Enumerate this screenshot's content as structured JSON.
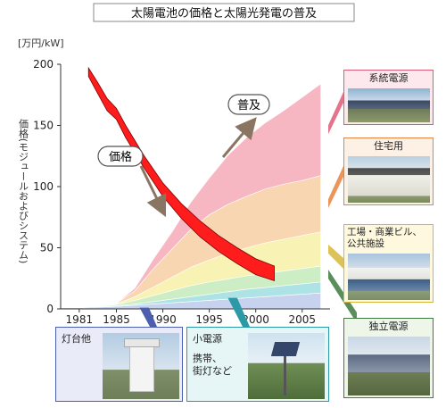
{
  "chart_data": {
    "type": "area",
    "title": "太陽電池の価格と太陽光発電の普及",
    "ylabel": "価格(モジュールおよびシステム)",
    "yunit": "[万円/kW]",
    "ylim": [
      0,
      200
    ],
    "yticks": [
      "0",
      "50",
      "100",
      "150",
      "200"
    ],
    "xticks": [
      "1981",
      "1985",
      "1990",
      "1995",
      "2000",
      "2005"
    ],
    "x": [
      1979,
      1981,
      1983,
      1985,
      1987,
      1989,
      1991,
      1993,
      1995,
      1997,
      1999,
      2001,
      2003,
      2005,
      2007
    ],
    "series": [
      {
        "name": "灯台他",
        "color": "#c7d3ee",
        "values": [
          1,
          1,
          1.5,
          2,
          3,
          4,
          5,
          6,
          7,
          8,
          9,
          10,
          11,
          12,
          13
        ]
      },
      {
        "name": "小電源",
        "color": "#aee3e6",
        "values": [
          0,
          0,
          0.2,
          0.5,
          1,
          2,
          3,
          4,
          5,
          6,
          7,
          7.5,
          8,
          8.5,
          9
        ]
      },
      {
        "name": "独立電源",
        "color": "#cdeec5",
        "values": [
          0,
          0,
          0.3,
          1,
          3,
          5,
          7,
          9,
          10,
          10.5,
          11,
          11.5,
          12,
          12.5,
          13
        ]
      },
      {
        "name": "工場・商業ビル、公共施設",
        "color": "#f8f2b4",
        "values": [
          0,
          0,
          0,
          0.5,
          3,
          7,
          11,
          15,
          18,
          21,
          23,
          25,
          26,
          27,
          28
        ]
      },
      {
        "name": "住宅用",
        "color": "#f9d6b2",
        "values": [
          0,
          0,
          0,
          0.5,
          5,
          15,
          23,
          31,
          37,
          40,
          42,
          44,
          45,
          45,
          46
        ]
      },
      {
        "name": "系統電源",
        "color": "#f6b6c2",
        "values": [
          0,
          0,
          0,
          0,
          2,
          8,
          14,
          22,
          30,
          40,
          48,
          54,
          60,
          68,
          75
        ]
      }
    ],
    "price": {
      "name": "価格",
      "color": "#ff1c1c",
      "x": [
        1982,
        1983,
        1984,
        1985,
        1986,
        1988,
        1990,
        1992,
        1994,
        1996,
        1998,
        2000,
        2002
      ],
      "upper": [
        197,
        185,
        172,
        164,
        150,
        125,
        103,
        86,
        72,
        60,
        50,
        41,
        35
      ],
      "lower": [
        190,
        176,
        162,
        155,
        140,
        115,
        92,
        74,
        59,
        47,
        37,
        28,
        23
      ]
    },
    "annotations": {
      "price": "価格",
      "spread": "普及"
    }
  },
  "callouts": {
    "grid": "系統電源",
    "residential": "住宅用",
    "commercial": "工場・商業ビル、\n公共施設",
    "standalone": "独立電源",
    "lighthouse": "灯台他",
    "small_title": "小電源",
    "small_body": "携帯、\n街灯など"
  }
}
